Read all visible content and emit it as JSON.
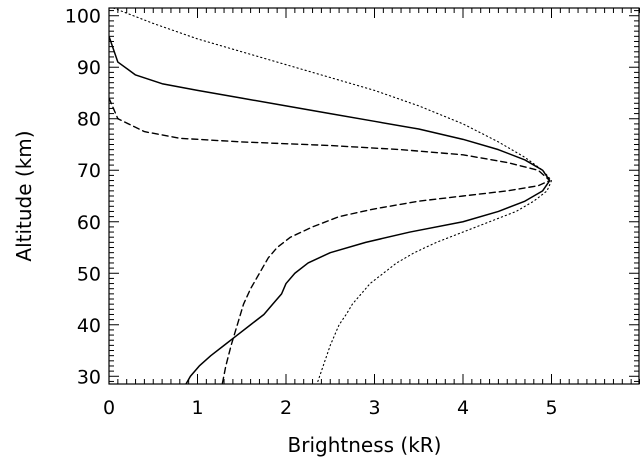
{
  "chart_data": {
    "type": "line",
    "title": "",
    "xlabel": "Brightness (kR)",
    "ylabel": "Altitude (km)",
    "xlim": [
      0,
      6
    ],
    "ylim": [
      28.5,
      101.5
    ],
    "xticks": [
      0,
      1,
      2,
      3,
      4,
      5
    ],
    "yticks": [
      30,
      40,
      50,
      60,
      70,
      80,
      90,
      100
    ],
    "x_minor_step": 0.1,
    "y_minor_step": 1,
    "grid": false,
    "legend": "none",
    "series": [
      {
        "style": "solid",
        "color": "#000000",
        "points": [
          [
            0.0,
            96
          ],
          [
            0.1,
            91
          ],
          [
            0.3,
            88.5
          ],
          [
            0.6,
            86.8
          ],
          [
            1.0,
            85.5
          ],
          [
            1.5,
            84
          ],
          [
            2.0,
            82.5
          ],
          [
            2.5,
            81
          ],
          [
            3.0,
            79.5
          ],
          [
            3.5,
            78
          ],
          [
            4.0,
            76
          ],
          [
            4.4,
            74
          ],
          [
            4.7,
            72
          ],
          [
            4.9,
            70
          ],
          [
            4.98,
            68
          ],
          [
            4.9,
            66
          ],
          [
            4.7,
            64
          ],
          [
            4.4,
            62
          ],
          [
            4.0,
            60
          ],
          [
            3.4,
            58
          ],
          [
            2.9,
            56
          ],
          [
            2.5,
            54
          ],
          [
            2.25,
            52
          ],
          [
            2.1,
            50
          ],
          [
            2.0,
            48
          ],
          [
            1.95,
            46
          ],
          [
            1.85,
            44
          ],
          [
            1.75,
            42
          ],
          [
            1.6,
            40
          ],
          [
            1.45,
            38
          ],
          [
            1.3,
            36
          ],
          [
            1.15,
            34
          ],
          [
            1.02,
            32
          ],
          [
            0.92,
            30
          ],
          [
            0.87,
            28.5
          ]
        ]
      },
      {
        "style": "dashed",
        "color": "#000000",
        "points": [
          [
            0.0,
            84
          ],
          [
            0.1,
            80
          ],
          [
            0.4,
            77.5
          ],
          [
            0.8,
            76.2
          ],
          [
            1.5,
            75.5
          ],
          [
            2.5,
            74.8
          ],
          [
            3.3,
            74
          ],
          [
            4.0,
            73
          ],
          [
            4.5,
            71.5
          ],
          [
            4.85,
            70
          ],
          [
            4.98,
            68
          ],
          [
            4.85,
            67
          ],
          [
            4.5,
            66
          ],
          [
            4.0,
            65
          ],
          [
            3.5,
            64
          ],
          [
            3.0,
            62.5
          ],
          [
            2.6,
            61
          ],
          [
            2.3,
            59
          ],
          [
            2.05,
            57
          ],
          [
            1.9,
            55
          ],
          [
            1.8,
            53
          ],
          [
            1.7,
            50
          ],
          [
            1.6,
            47
          ],
          [
            1.52,
            44
          ],
          [
            1.45,
            40
          ],
          [
            1.38,
            36
          ],
          [
            1.32,
            32
          ],
          [
            1.28,
            28.5
          ]
        ]
      },
      {
        "style": "dotted",
        "color": "#000000",
        "points": [
          [
            0.05,
            101.5
          ],
          [
            0.5,
            98.5
          ],
          [
            1.0,
            95.5
          ],
          [
            1.5,
            93
          ],
          [
            2.0,
            90.5
          ],
          [
            2.5,
            88
          ],
          [
            3.0,
            85.5
          ],
          [
            3.5,
            82.5
          ],
          [
            4.0,
            79
          ],
          [
            4.4,
            75.5
          ],
          [
            4.7,
            72.5
          ],
          [
            4.9,
            70
          ],
          [
            5.0,
            68
          ],
          [
            4.95,
            66
          ],
          [
            4.8,
            64
          ],
          [
            4.6,
            62
          ],
          [
            4.3,
            60
          ],
          [
            4.0,
            58
          ],
          [
            3.7,
            56
          ],
          [
            3.45,
            54
          ],
          [
            3.25,
            52
          ],
          [
            3.1,
            50
          ],
          [
            2.95,
            48
          ],
          [
            2.85,
            46
          ],
          [
            2.75,
            44
          ],
          [
            2.68,
            42
          ],
          [
            2.6,
            40
          ],
          [
            2.55,
            38
          ],
          [
            2.5,
            36
          ],
          [
            2.46,
            34
          ],
          [
            2.42,
            32
          ],
          [
            2.38,
            30
          ],
          [
            2.35,
            28.5
          ]
        ]
      }
    ]
  }
}
